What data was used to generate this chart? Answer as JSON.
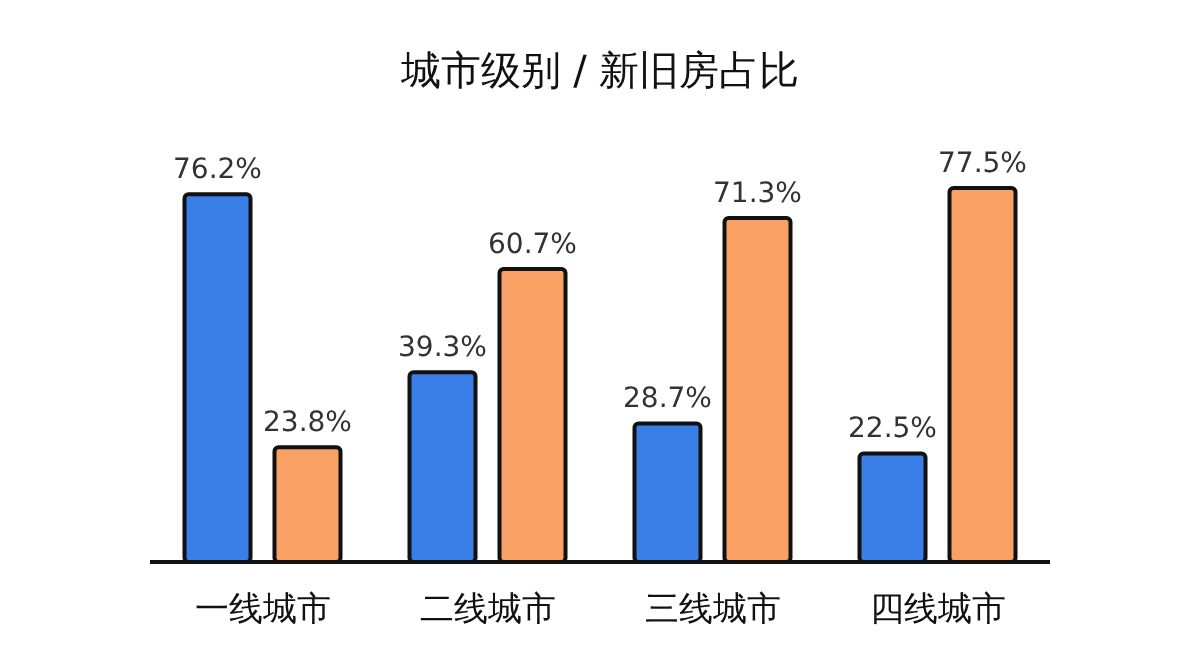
{
  "chart_data": {
    "type": "bar",
    "title": "城市级别 / 新旧房占比",
    "categories": [
      "一线城市",
      "二线城市",
      "三线城市",
      "四线城市"
    ],
    "series": [
      {
        "color": "#3a7ee8",
        "values": [
          76.2,
          39.3,
          28.7,
          22.5
        ],
        "value_labels": [
          "76.2%",
          "39.3%",
          "28.7%",
          "22.5%"
        ]
      },
      {
        "color": "#f9a064",
        "values": [
          23.8,
          60.7,
          71.3,
          77.5
        ],
        "value_labels": [
          "23.8%",
          "60.7%",
          "71.3%",
          "77.5%"
        ]
      }
    ]
  }
}
